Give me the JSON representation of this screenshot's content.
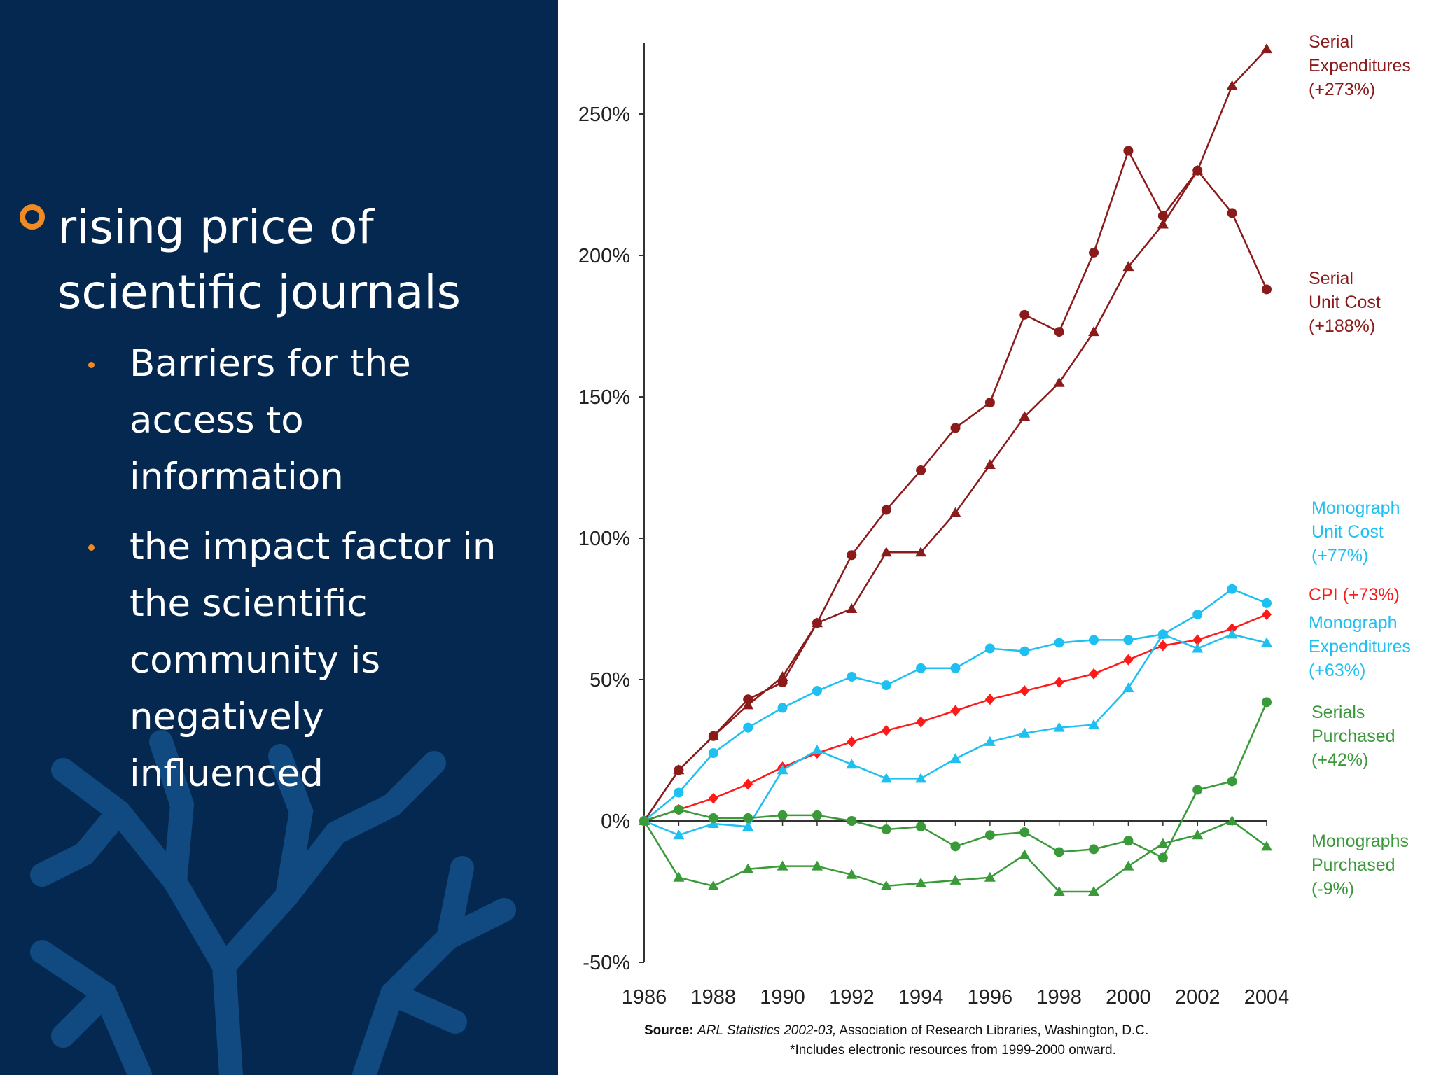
{
  "bullets": {
    "main": "rising price of scientific journals",
    "subs": [
      "Barriers for the access to information",
      "the impact factor in the scientific community is negatively influenced"
    ]
  },
  "colors": {
    "dark_red": "#8b1a1a",
    "red": "#ff1a1a",
    "cyan": "#1ec0f2",
    "green": "#3a9a3a",
    "accent": "#f08a24"
  },
  "chart_data": {
    "type": "line",
    "x": [
      1986,
      1987,
      1988,
      1989,
      1990,
      1991,
      1992,
      1993,
      1994,
      1995,
      1996,
      1997,
      1998,
      1999,
      2000,
      2001,
      2002,
      2003,
      2004
    ],
    "ylim": [
      -50,
      275
    ],
    "yticks": [
      -50,
      0,
      50,
      100,
      150,
      200,
      250
    ],
    "ytick_labels": [
      "-50%",
      "0%",
      "50%",
      "100%",
      "150%",
      "200%",
      "250%"
    ],
    "xticks": [
      1986,
      1988,
      1990,
      1992,
      1994,
      1996,
      1998,
      2000,
      2002,
      2004
    ],
    "xtick_labels": [
      "1986",
      "1988",
      "1990",
      "1992",
      "1994",
      "1996",
      "1998",
      "2000",
      "2002",
      "2004"
    ],
    "series": [
      {
        "name": "Serial Expenditures",
        "label": [
          "Serial",
          "Expenditures",
          "(+273%)"
        ],
        "color": "#8b1a1a",
        "marker": "triangle",
        "values": [
          0,
          18,
          30,
          41,
          51,
          70,
          75,
          95,
          95,
          109,
          126,
          143,
          155,
          173,
          196,
          211,
          230,
          260,
          273
        ]
      },
      {
        "name": "Serial Unit Cost",
        "label": [
          "Serial",
          "Unit Cost",
          "(+188%)"
        ],
        "color": "#8b1a1a",
        "marker": "circle",
        "values": [
          0,
          18,
          30,
          43,
          49,
          70,
          94,
          110,
          124,
          139,
          148,
          179,
          173,
          201,
          237,
          214,
          230,
          215,
          188
        ]
      },
      {
        "name": "Monograph Unit Cost",
        "label": [
          "Monograph",
          "Unit Cost",
          "(+77%)"
        ],
        "color": "#1ec0f2",
        "marker": "circle",
        "values": [
          0,
          10,
          24,
          33,
          40,
          46,
          51,
          48,
          54,
          54,
          61,
          60,
          63,
          64,
          64,
          66,
          73,
          82,
          77
        ]
      },
      {
        "name": "CPI",
        "label": [
          "CPI (+73%)"
        ],
        "color": "#ff1a1a",
        "marker": "diamond",
        "values": [
          0,
          4,
          8,
          13,
          19,
          24,
          28,
          32,
          35,
          39,
          43,
          46,
          49,
          52,
          57,
          62,
          64,
          68,
          73
        ]
      },
      {
        "name": "Monograph Expenditures",
        "label": [
          "Monograph",
          "Expenditures",
          "(+63%)"
        ],
        "color": "#1ec0f2",
        "marker": "triangle",
        "values": [
          0,
          -5,
          -1,
          -2,
          18,
          25,
          20,
          15,
          15,
          22,
          28,
          31,
          33,
          34,
          47,
          66,
          61,
          66,
          63
        ]
      },
      {
        "name": "Serials Purchased",
        "label": [
          "Serials",
          "Purchased",
          "(+42%)"
        ],
        "color": "#3a9a3a",
        "marker": "circle",
        "values": [
          0,
          4,
          1,
          1,
          2,
          2,
          0,
          -3,
          -2,
          -9,
          -5,
          -4,
          -11,
          -10,
          -7,
          -13,
          11,
          14,
          42
        ]
      },
      {
        "name": "Monographs Purchased",
        "label": [
          "Monographs",
          "Purchased",
          "(-9%)"
        ],
        "color": "#3a9a3a",
        "marker": "triangle",
        "values": [
          0,
          -20,
          -23,
          -17,
          -16,
          -16,
          -19,
          -23,
          -22,
          -21,
          -20,
          -12,
          -25,
          -25,
          -16,
          -8,
          -5,
          0,
          -9
        ]
      }
    ],
    "source_line": {
      "prefix": "Source: ",
      "italic": "ARL Statistics 2002-03,",
      "rest": " Association of Research Libraries, Washington, D.C."
    },
    "footnote": "*Includes electronic resources from 1999-2000 onward."
  }
}
